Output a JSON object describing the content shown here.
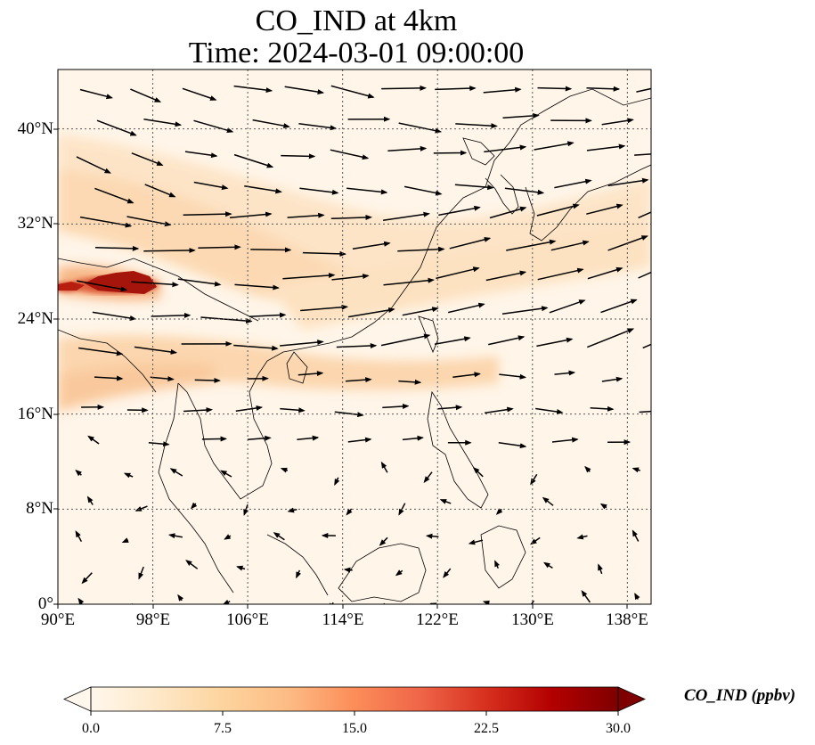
{
  "title": {
    "line1": "CO_IND at 4km",
    "line2": "Time: 2024-03-01 09:00:00"
  },
  "map": {
    "lon_range": [
      90,
      140
    ],
    "lat_range": [
      0,
      45
    ],
    "x_ticks": [
      "90°E",
      "98°E",
      "106°E",
      "114°E",
      "122°E",
      "130°E",
      "138°E"
    ],
    "y_ticks": [
      "0°",
      "8°N",
      "16°N",
      "24°N",
      "32°N",
      "40°N"
    ],
    "gridlines": "dotted"
  },
  "colorbar": {
    "label": "CO_IND (ppbv)",
    "ticks": [
      "0.0",
      "7.5",
      "15.0",
      "22.5",
      "30.0"
    ],
    "range": [
      0,
      30
    ],
    "extend": "both",
    "colormap": "OrRd",
    "colors": [
      "#fff7ec",
      "#fee8c8",
      "#fdd49e",
      "#fdbb84",
      "#fc8d59",
      "#ef6548",
      "#d7301f",
      "#b30000",
      "#7f0000"
    ]
  },
  "wind": {
    "description": "vectors",
    "dominant_direction": "west-to-east"
  }
}
